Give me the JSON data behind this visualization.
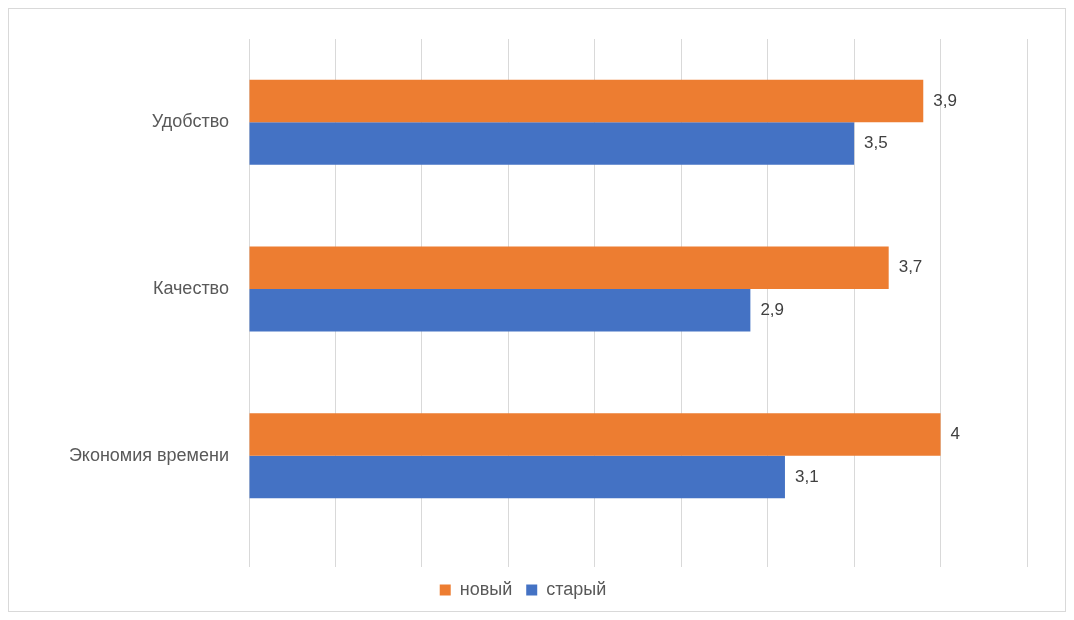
{
  "chart_data": {
    "type": "bar",
    "orientation": "horizontal",
    "categories": [
      "Удобство",
      "Качество",
      "Экономия времени"
    ],
    "series": [
      {
        "name": "новый",
        "color": "#ed7d31",
        "values": [
          3.9,
          3.7,
          4
        ],
        "value_labels": [
          "3,9",
          "3,7",
          "4"
        ]
      },
      {
        "name": "старый",
        "color": "#4472c4",
        "values": [
          3.5,
          2.9,
          3.1
        ],
        "value_labels": [
          "3,5",
          "2,9",
          "3,1"
        ]
      }
    ],
    "xlim": [
      0,
      4.5
    ],
    "xticks": [
      {
        "value": 0,
        "label": null
      },
      {
        "value": 0.5,
        "label": null
      },
      {
        "value": 1,
        "label": null
      },
      {
        "value": 1.5,
        "label": null
      },
      {
        "value": 2,
        "label": null
      },
      {
        "value": 2.5,
        "label": null
      },
      {
        "value": 3,
        "label": null
      },
      {
        "value": 3.5,
        "label": null
      },
      {
        "value": 4,
        "label": null
      },
      {
        "value": 4.5,
        "label": null
      }
    ],
    "tick_labels": "y",
    "grid": "x",
    "legend": "bottom"
  }
}
